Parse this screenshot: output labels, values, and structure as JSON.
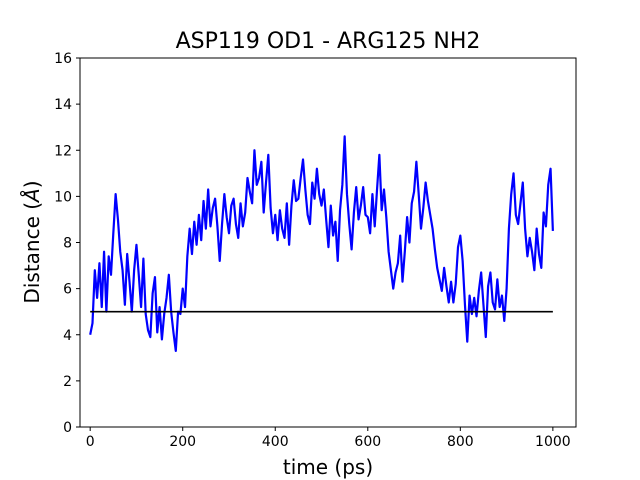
{
  "chart_data": {
    "type": "line",
    "title": "ASP119 OD1 - ARG125 NH2",
    "xlabel": "time (ps)",
    "ylabel": "Distance (",
    "ylabel_unit": "Å",
    "ylabel_close": ")",
    "xlim": [
      -22,
      1050
    ],
    "ylim": [
      0,
      16
    ],
    "xticks": [
      0,
      200,
      400,
      600,
      800,
      1000
    ],
    "yticks": [
      0,
      2,
      4,
      6,
      8,
      10,
      12,
      14,
      16
    ],
    "grid": false,
    "series": [
      {
        "color": "#0000ff",
        "x": [
          0,
          5,
          10,
          15,
          20,
          25,
          30,
          35,
          40,
          45,
          50,
          55,
          60,
          65,
          70,
          75,
          80,
          85,
          90,
          95,
          100,
          105,
          110,
          115,
          120,
          125,
          130,
          135,
          140,
          145,
          150,
          155,
          160,
          165,
          170,
          175,
          180,
          185,
          190,
          195,
          200,
          205,
          210,
          215,
          220,
          225,
          230,
          235,
          240,
          245,
          250,
          255,
          260,
          265,
          270,
          275,
          280,
          285,
          290,
          295,
          300,
          305,
          310,
          315,
          320,
          325,
          330,
          335,
          340,
          345,
          350,
          355,
          360,
          365,
          370,
          375,
          380,
          385,
          390,
          395,
          400,
          405,
          410,
          415,
          420,
          425,
          430,
          435,
          440,
          445,
          450,
          455,
          460,
          465,
          470,
          475,
          480,
          485,
          490,
          495,
          500,
          505,
          510,
          515,
          520,
          525,
          530,
          535,
          540,
          545,
          550,
          555,
          560,
          565,
          570,
          575,
          580,
          585,
          590,
          595,
          600,
          605,
          610,
          615,
          620,
          625,
          630,
          635,
          640,
          645,
          650,
          655,
          660,
          665,
          670,
          675,
          680,
          685,
          690,
          695,
          700,
          705,
          710,
          715,
          720,
          725,
          730,
          735,
          740,
          745,
          750,
          755,
          760,
          765,
          770,
          775,
          780,
          785,
          790,
          795,
          800,
          805,
          810,
          815,
          820,
          825,
          830,
          835,
          840,
          845,
          850,
          855,
          860,
          865,
          870,
          875,
          880,
          885,
          890,
          895,
          900,
          905,
          910,
          915,
          920,
          925,
          930,
          935,
          940,
          945,
          950,
          955,
          960,
          965,
          970,
          975,
          980,
          985,
          990,
          995,
          1000
        ],
        "values": [
          4.0,
          4.5,
          6.8,
          5.6,
          7.1,
          5.2,
          7.6,
          5.0,
          7.4,
          6.6,
          8.4,
          10.1,
          9.0,
          7.6,
          6.8,
          5.3,
          7.5,
          6.3,
          5.0,
          6.8,
          7.9,
          6.6,
          5.2,
          7.3,
          4.9,
          4.2,
          3.9,
          5.8,
          6.5,
          4.1,
          5.2,
          3.8,
          4.9,
          5.6,
          6.6,
          5.0,
          4.1,
          3.3,
          5.0,
          4.9,
          6.0,
          5.2,
          7.4,
          8.6,
          7.5,
          8.9,
          7.9,
          9.2,
          8.1,
          9.8,
          8.6,
          10.3,
          8.7,
          9.5,
          9.9,
          8.7,
          7.2,
          8.8,
          10.1,
          9.1,
          8.4,
          9.6,
          9.9,
          8.8,
          8.2,
          9.7,
          8.7,
          9.3,
          10.8,
          10.2,
          9.7,
          12.0,
          10.5,
          10.8,
          11.5,
          9.3,
          10.6,
          11.8,
          9.5,
          8.4,
          9.2,
          8.1,
          9.4,
          8.6,
          8.2,
          9.7,
          7.9,
          9.6,
          10.7,
          9.8,
          9.9,
          10.8,
          11.6,
          10.3,
          9.2,
          8.8,
          10.6,
          9.9,
          11.2,
          10.1,
          9.6,
          10.3,
          9.0,
          7.8,
          9.6,
          8.3,
          8.9,
          7.2,
          9.4,
          10.5,
          12.6,
          10.1,
          8.8,
          7.7,
          9.3,
          10.4,
          9.0,
          9.6,
          10.4,
          9.2,
          9.1,
          8.4,
          10.1,
          8.7,
          10.3,
          11.8,
          9.4,
          10.3,
          9.1,
          7.6,
          6.8,
          6.0,
          6.7,
          7.1,
          8.3,
          6.3,
          7.6,
          9.1,
          8.0,
          9.7,
          10.2,
          11.5,
          10.1,
          8.6,
          9.5,
          10.6,
          9.8,
          9.2,
          8.6,
          7.7,
          6.9,
          6.4,
          5.9,
          6.9,
          6.1,
          5.4,
          6.3,
          5.4,
          6.2,
          7.8,
          8.3,
          7.2,
          5.3,
          3.7,
          5.7,
          4.9,
          5.6,
          4.8,
          5.9,
          6.7,
          5.3,
          3.9,
          6.1,
          6.7,
          5.4,
          5.1,
          6.4,
          5.2,
          5.7,
          4.6,
          6.0,
          8.6,
          10.1,
          11.0,
          9.2,
          8.8,
          9.7,
          10.6,
          8.6,
          7.4,
          8.2,
          7.6,
          6.8,
          8.6,
          7.5,
          6.9,
          9.3,
          8.7,
          10.5,
          11.2,
          8.5
        ]
      },
      {
        "color": "#000000",
        "x": [
          0,
          1000
        ],
        "values": [
          5,
          5
        ]
      }
    ]
  }
}
